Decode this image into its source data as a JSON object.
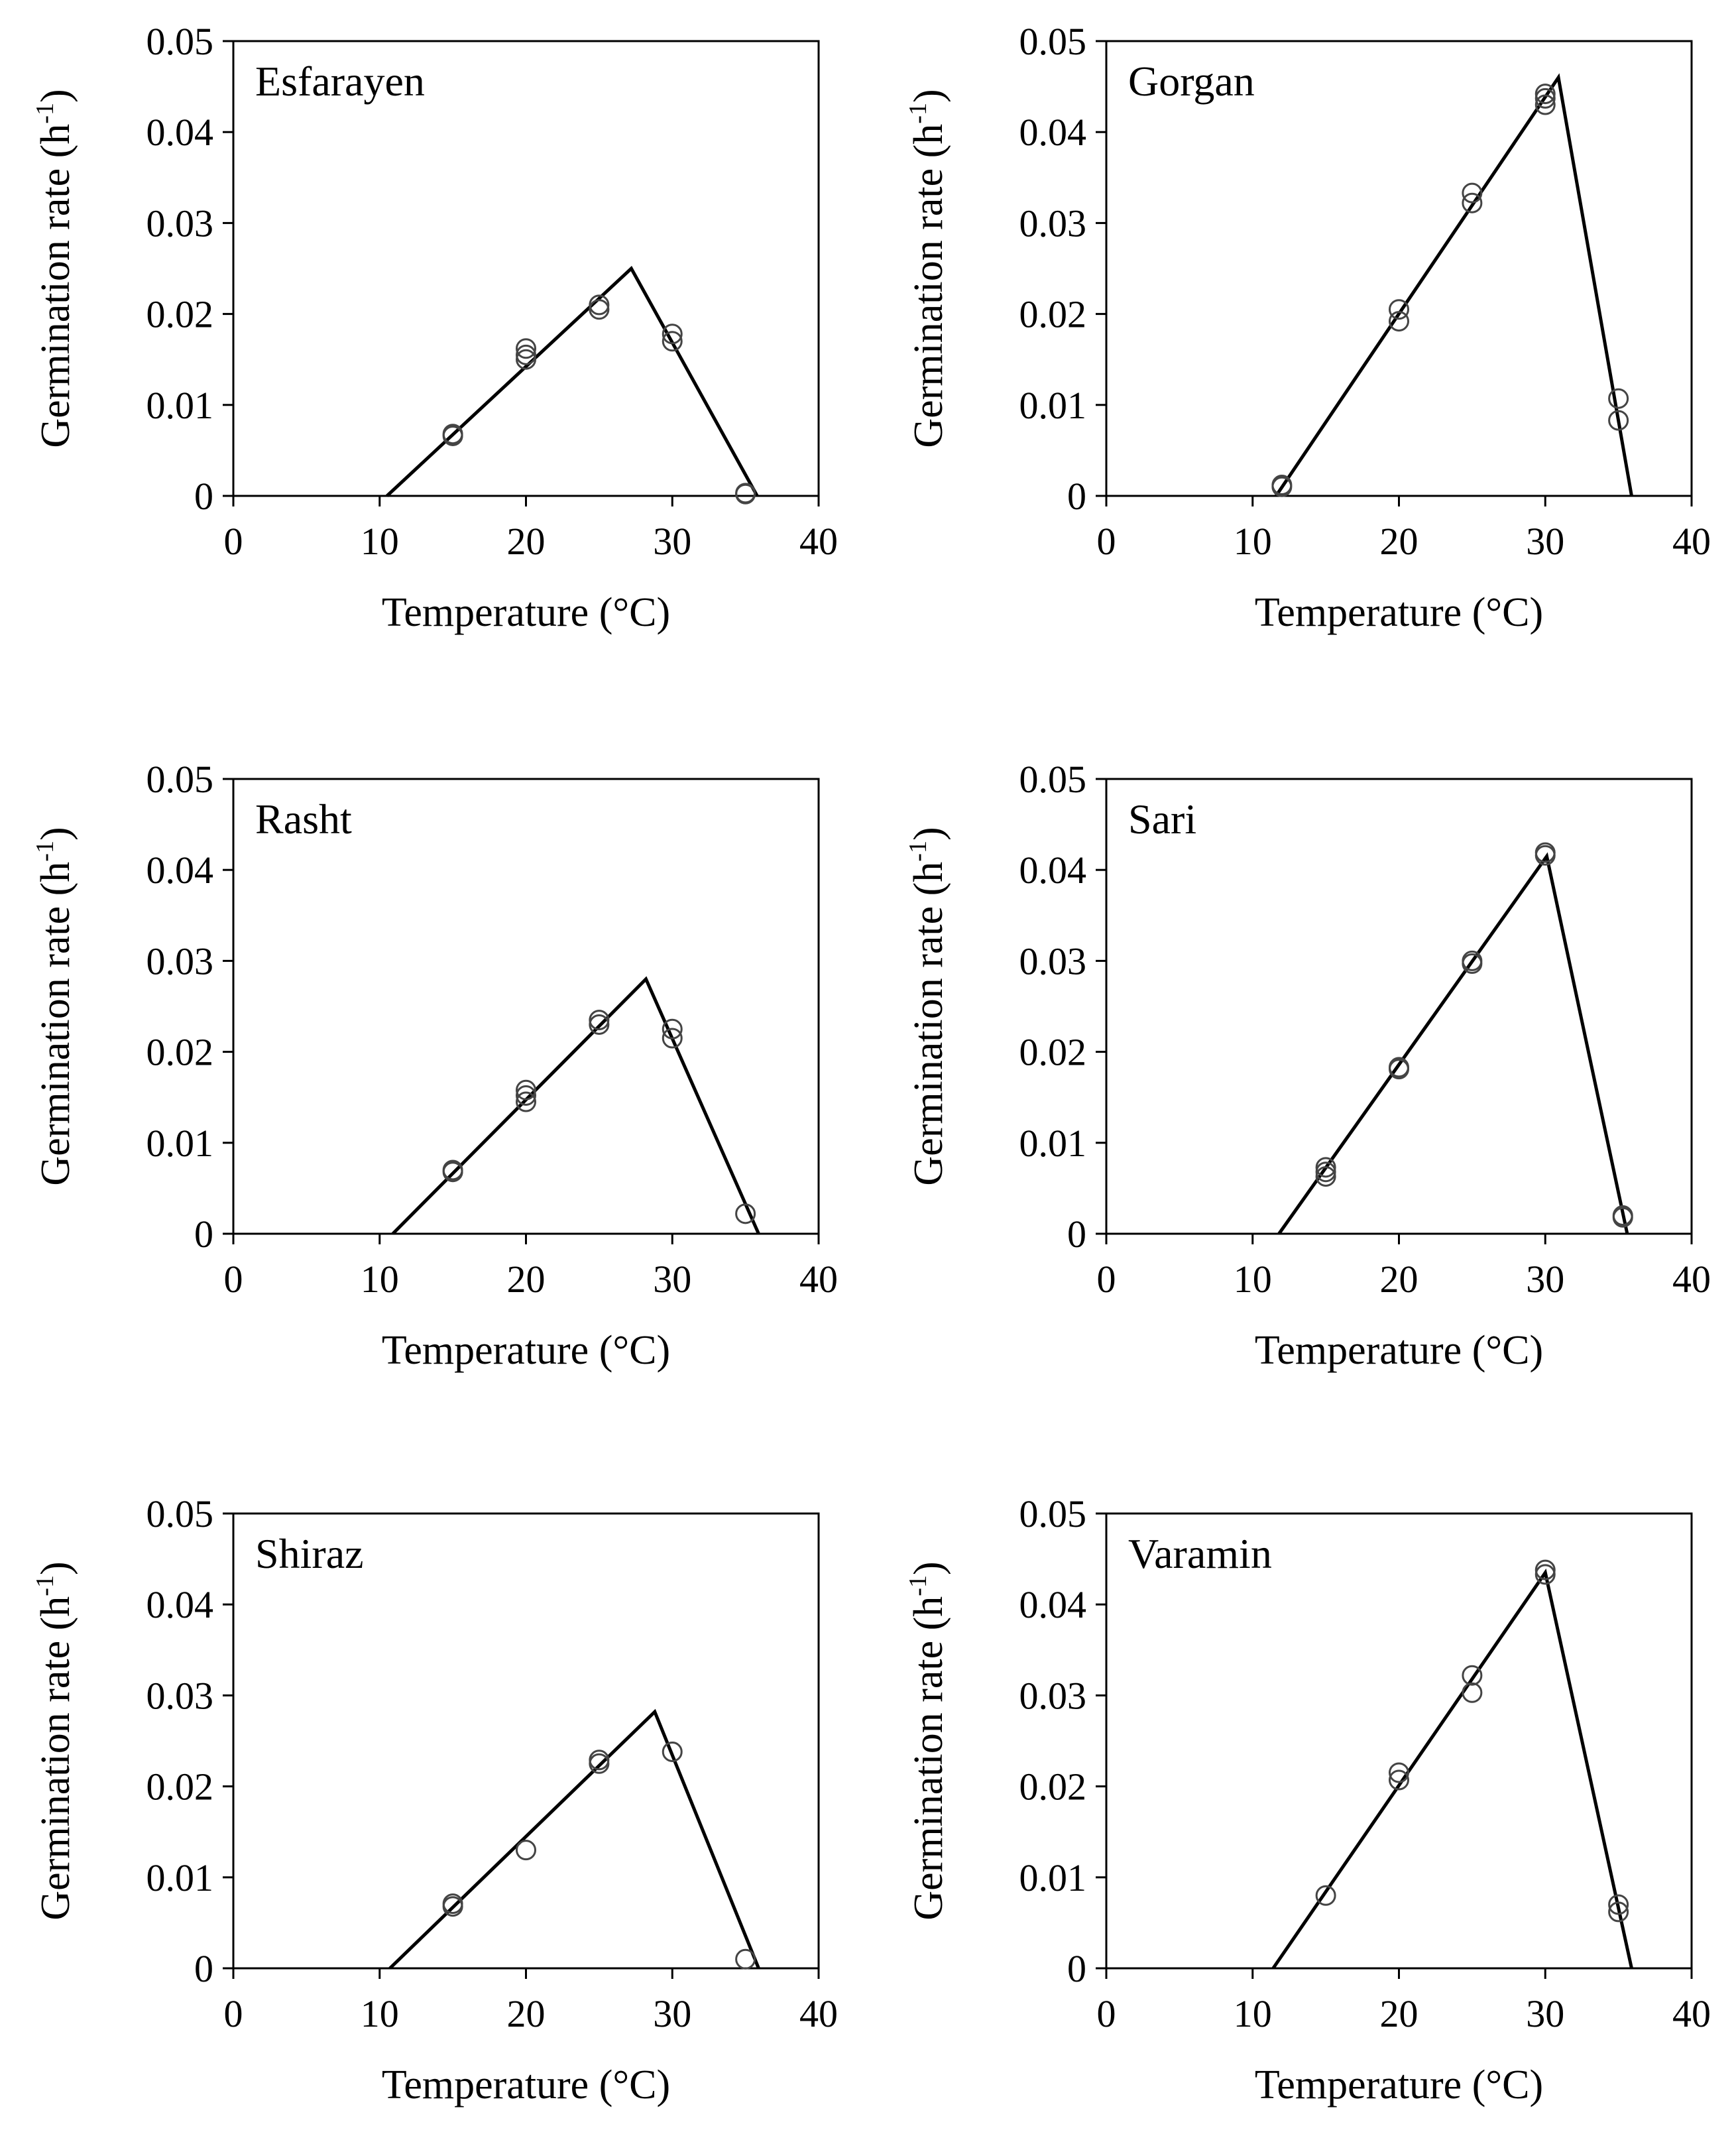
{
  "chart_data": [
    {
      "type": "scatter",
      "title": "Esfarayen",
      "xlabel": "Temperature (°C)",
      "ylabel_main": "Germination rate (h",
      "ylabel_sup": "-1",
      "ylabel_close": ")",
      "xlim": [
        0,
        40
      ],
      "ylim": [
        0,
        0.05
      ],
      "xticks": [
        "0",
        "10",
        "20",
        "30",
        "40"
      ],
      "yticks": [
        "0",
        "0.01",
        "0.02",
        "0.03",
        "0.04",
        "0.05"
      ],
      "points": [
        [
          15,
          0.0066
        ],
        [
          15,
          0.0068
        ],
        [
          20,
          0.015
        ],
        [
          20,
          0.0155
        ],
        [
          20,
          0.0162
        ],
        [
          25,
          0.0205
        ],
        [
          25,
          0.021
        ],
        [
          30,
          0.017
        ],
        [
          30,
          0.0178
        ],
        [
          35,
          0.0002
        ],
        [
          35,
          0.0003
        ]
      ],
      "fit_line": [
        [
          10.5,
          0
        ],
        [
          27.2,
          0.025
        ],
        [
          35.8,
          0
        ]
      ]
    },
    {
      "type": "scatter",
      "title": "Gorgan",
      "xlabel": "Temperature (°C)",
      "ylabel_main": "Germination rate (h",
      "ylabel_sup": "-1",
      "ylabel_close": ")",
      "xlim": [
        0,
        40
      ],
      "ylim": [
        0,
        0.05
      ],
      "xticks": [
        "0",
        "10",
        "20",
        "30",
        "40"
      ],
      "yticks": [
        "0",
        "0.01",
        "0.02",
        "0.03",
        "0.04",
        "0.05"
      ],
      "points": [
        [
          12,
          0.001
        ],
        [
          12,
          0.0012
        ],
        [
          20,
          0.0192
        ],
        [
          20,
          0.0205
        ],
        [
          25,
          0.0322
        ],
        [
          25,
          0.0333
        ],
        [
          30,
          0.043
        ],
        [
          30,
          0.0437
        ],
        [
          30,
          0.0442
        ],
        [
          35,
          0.0083
        ],
        [
          35,
          0.0107
        ]
      ],
      "fit_line": [
        [
          11.6,
          0
        ],
        [
          30.9,
          0.046
        ],
        [
          35.9,
          0
        ]
      ]
    },
    {
      "type": "scatter",
      "title": "Rasht",
      "xlabel": "Temperature (°C)",
      "ylabel_main": "Germination rate (h",
      "ylabel_sup": "-1",
      "ylabel_close": ")",
      "xlim": [
        0,
        40
      ],
      "ylim": [
        0,
        0.05
      ],
      "xticks": [
        "0",
        "10",
        "20",
        "30",
        "40"
      ],
      "yticks": [
        "0",
        "0.01",
        "0.02",
        "0.03",
        "0.04",
        "0.05"
      ],
      "points": [
        [
          15,
          0.0068
        ],
        [
          15,
          0.007
        ],
        [
          20,
          0.0145
        ],
        [
          20,
          0.0152
        ],
        [
          20,
          0.0158
        ],
        [
          25,
          0.023
        ],
        [
          25,
          0.0235
        ],
        [
          30,
          0.0215
        ],
        [
          30,
          0.0225
        ],
        [
          35,
          0.0022
        ]
      ],
      "fit_line": [
        [
          10.9,
          0
        ],
        [
          28.2,
          0.028
        ],
        [
          35.9,
          0
        ]
      ]
    },
    {
      "type": "scatter",
      "title": "Sari",
      "xlabel": "Temperature (°C)",
      "ylabel_main": "Germination rate (h",
      "ylabel_sup": "-1",
      "ylabel_close": ")",
      "xlim": [
        0,
        40
      ],
      "ylim": [
        0,
        0.05
      ],
      "xticks": [
        "0",
        "10",
        "20",
        "30",
        "40"
      ],
      "yticks": [
        "0",
        "0.01",
        "0.02",
        "0.03",
        "0.04",
        "0.05"
      ],
      "points": [
        [
          15,
          0.0063
        ],
        [
          15,
          0.0068
        ],
        [
          15,
          0.0073
        ],
        [
          20,
          0.0181
        ],
        [
          20,
          0.0183
        ],
        [
          25,
          0.0297
        ],
        [
          25,
          0.03
        ],
        [
          30,
          0.0416
        ],
        [
          30,
          0.0419
        ],
        [
          35.3,
          0.0018
        ],
        [
          35.3,
          0.002
        ]
      ],
      "fit_line": [
        [
          11.8,
          0
        ],
        [
          30.1,
          0.0415
        ],
        [
          35.6,
          0
        ]
      ]
    },
    {
      "type": "scatter",
      "title": "Shiraz",
      "xlabel": "Temperature (°C)",
      "ylabel_main": "Germination rate (h",
      "ylabel_sup": "-1",
      "ylabel_close": ")",
      "xlim": [
        0,
        40
      ],
      "ylim": [
        0,
        0.05
      ],
      "xticks": [
        "0",
        "10",
        "20",
        "30",
        "40"
      ],
      "yticks": [
        "0",
        "0.01",
        "0.02",
        "0.03",
        "0.04",
        "0.05"
      ],
      "points": [
        [
          15,
          0.0068
        ],
        [
          15,
          0.0071
        ],
        [
          20,
          0.013
        ],
        [
          25,
          0.0225
        ],
        [
          25,
          0.0229
        ],
        [
          30,
          0.0238
        ],
        [
          35,
          0.001
        ]
      ],
      "fit_line": [
        [
          10.7,
          0
        ],
        [
          28.8,
          0.0282
        ],
        [
          35.9,
          0
        ]
      ]
    },
    {
      "type": "scatter",
      "title": "Varamin",
      "xlabel": "Temperature (°C)",
      "ylabel_main": "Germination rate (h",
      "ylabel_sup": "-1",
      "ylabel_close": ")",
      "xlim": [
        0,
        40
      ],
      "ylim": [
        0,
        0.05
      ],
      "xticks": [
        "0",
        "10",
        "20",
        "30",
        "40"
      ],
      "yticks": [
        "0",
        "0.01",
        "0.02",
        "0.03",
        "0.04",
        "0.05"
      ],
      "points": [
        [
          15,
          0.008
        ],
        [
          20,
          0.0207
        ],
        [
          20,
          0.0215
        ],
        [
          25,
          0.0303
        ],
        [
          25,
          0.0322
        ],
        [
          30,
          0.0433
        ],
        [
          30,
          0.0438
        ],
        [
          35,
          0.0062
        ],
        [
          35,
          0.007
        ]
      ],
      "fit_line": [
        [
          11.4,
          0
        ],
        [
          30.0,
          0.0435
        ],
        [
          35.9,
          0
        ]
      ]
    }
  ]
}
